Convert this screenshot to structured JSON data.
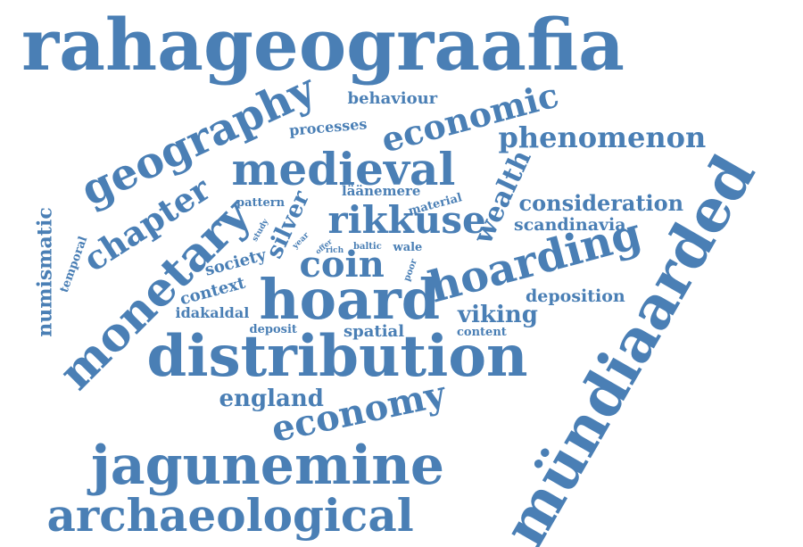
{
  "word_cloud": {
    "color": "#4a7fb5",
    "words": [
      "rahageograafia",
      "geography",
      "economic",
      "phenomenon",
      "behaviour",
      "processes",
      "medieval",
      "numismatic",
      "temporal",
      "chapter",
      "monetary",
      "pattern",
      "silver",
      "study",
      "year",
      "offer",
      "läänemere",
      "material",
      "wealth",
      "rikkuse",
      "consideration",
      "scandinavia",
      "rich",
      "baltic",
      "wale",
      "poor",
      "society",
      "coin",
      "hoarding",
      "context",
      "hoard",
      "deposition",
      "idakaldal",
      "viking",
      "deposit",
      "spatial",
      "content",
      "distribution",
      "mündiaarded",
      "england",
      "economy",
      "jagunemine",
      "archaeological"
    ]
  }
}
